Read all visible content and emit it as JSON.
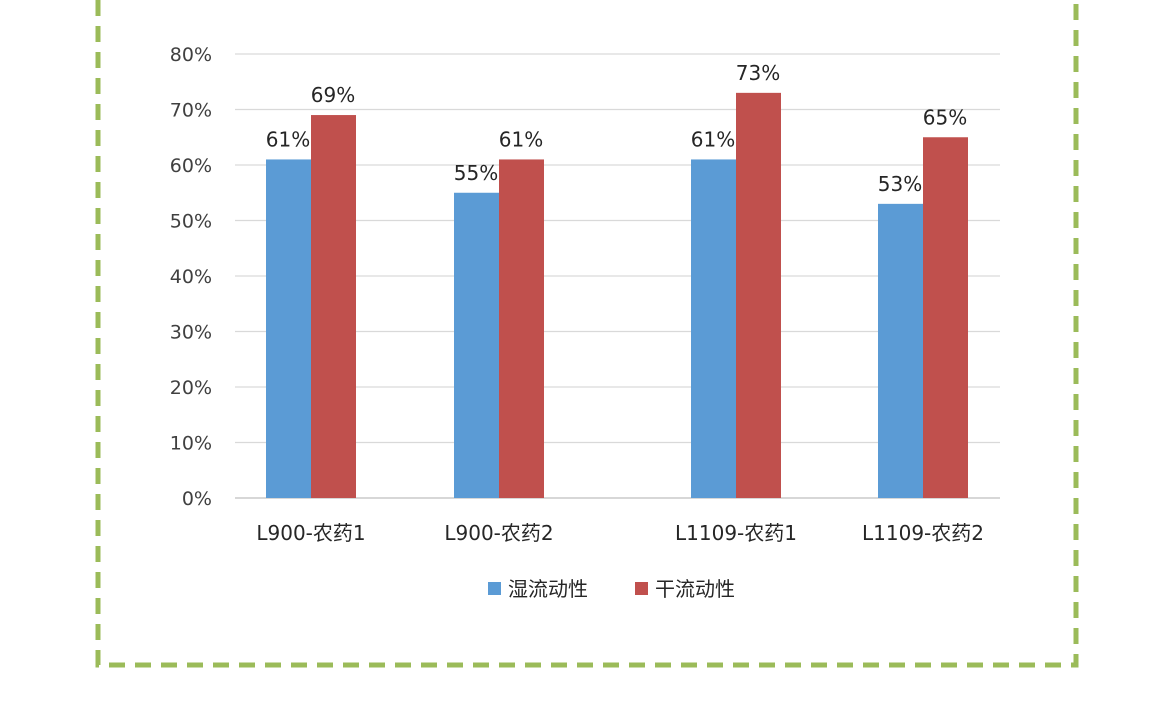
{
  "colors": {
    "frame_border": "#9bbb59",
    "gridline": "#d9d9d9",
    "background": "#ffffff"
  },
  "chart_data": {
    "type": "bar",
    "categories": [
      "L900-农药1",
      "L900-农药2",
      "L1109-农药1",
      "L1109-农药2"
    ],
    "series": [
      {
        "name": "湿流动性",
        "color": "#5b9bd5",
        "values": [
          0.61,
          0.55,
          0.61,
          0.53
        ],
        "labels": [
          "61%",
          "55%",
          "61%",
          "53%"
        ]
      },
      {
        "name": "干流动性",
        "color": "#c0504d",
        "values": [
          0.69,
          0.61,
          0.73,
          0.65
        ],
        "labels": [
          "69%",
          "61%",
          "73%",
          "65%"
        ]
      }
    ],
    "yticks": [
      "0%",
      "10%",
      "20%",
      "30%",
      "40%",
      "50%",
      "60%",
      "70%",
      "80%"
    ],
    "ylim": [
      0,
      0.8
    ],
    "grid": true,
    "legend_position": "bottom"
  }
}
